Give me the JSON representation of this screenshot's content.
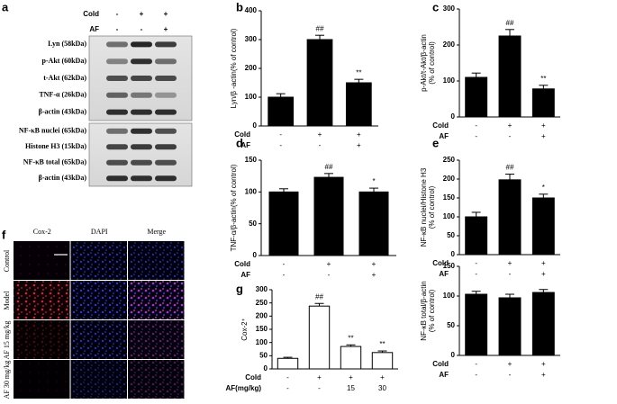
{
  "panel_labels": [
    "a",
    "b",
    "c",
    "d",
    "e",
    "f",
    "g"
  ],
  "blot": {
    "conditions": [
      {
        "name": "Cold",
        "signs": [
          "-",
          "+",
          "+"
        ]
      },
      {
        "name": "AF",
        "signs": [
          "-",
          "-",
          "+"
        ]
      }
    ],
    "groups": [
      [
        "Lyn (58kDa)",
        "p-Akt (60kDa)",
        "t-Akt (62kDa)",
        "TNF-α (26kDa)",
        "β-actin (43kDa)"
      ],
      [
        "NF-κB nuclei (65kDa)",
        "Histone H3 (15kDa)",
        "NF-κB total (65kDa)",
        "β-actin (43kDa)"
      ]
    ]
  },
  "micrographs": {
    "columns": [
      "Cox-2",
      "DAPI",
      "Merge"
    ],
    "rows": [
      "Control",
      "Model",
      "AF 15 mg/kg",
      "AF 30 mg/kg"
    ]
  },
  "chart_data": [
    {
      "type": "bar",
      "ylabel": [
        "Lyn/β -actin(% of control)"
      ],
      "color": "#000000",
      "conditions": [
        {
          "name": "Cold",
          "labels": [
            "-",
            "+",
            "+"
          ]
        },
        {
          "name": "AF",
          "labels": [
            "-",
            "-",
            "+"
          ]
        }
      ],
      "values": [
        100,
        300,
        150
      ],
      "errors": [
        12,
        15,
        12
      ],
      "annotations": [
        null,
        "##",
        "**"
      ],
      "ylim": [
        0,
        400
      ],
      "yticks": [
        0,
        100,
        200,
        300,
        400
      ]
    },
    {
      "type": "bar",
      "ylabel": [
        "p-Akt/t-Akt/β-actin",
        "(% of control)"
      ],
      "color": "#000000",
      "conditions": [
        {
          "name": "Cold",
          "labels": [
            "-",
            "+",
            "+"
          ]
        },
        {
          "name": "AF",
          "labels": [
            "-",
            "-",
            "+"
          ]
        }
      ],
      "values": [
        110,
        225,
        78
      ],
      "errors": [
        12,
        18,
        10
      ],
      "annotations": [
        null,
        "##",
        "**"
      ],
      "ylim": [
        0,
        300
      ],
      "yticks": [
        0,
        100,
        200,
        300
      ]
    },
    {
      "type": "bar",
      "ylabel": [
        "TNF-α/β-actin(% of control)"
      ],
      "color": "#000000",
      "conditions": [
        {
          "name": "Cold",
          "labels": [
            "-",
            "+",
            "+"
          ]
        },
        {
          "name": "AF",
          "labels": [
            "-",
            "-",
            "+"
          ]
        }
      ],
      "values": [
        100,
        123,
        100
      ],
      "errors": [
        5,
        6,
        6
      ],
      "annotations": [
        null,
        "##",
        "*"
      ],
      "ylim": [
        0,
        150
      ],
      "yticks": [
        0,
        50,
        100,
        150
      ]
    },
    {
      "type": "bar",
      "ylabel": [
        "NF-κB nuclei/Histone H3",
        "(% of control)"
      ],
      "color": "#000000",
      "conditions": [
        {
          "name": "Cold",
          "labels": [
            "-",
            "+",
            "+"
          ]
        },
        {
          "name": "AF",
          "labels": [
            "-",
            "-",
            "+"
          ]
        }
      ],
      "values": [
        100,
        198,
        150
      ],
      "errors": [
        12,
        15,
        10
      ],
      "annotations": [
        null,
        "##",
        "*"
      ],
      "ylim": [
        0,
        250
      ],
      "yticks": [
        0,
        50,
        100,
        150,
        200,
        250
      ]
    },
    {
      "type": "bar",
      "ylabel": [
        "NF-κB total/β-actin",
        "(% of control)"
      ],
      "color": "#000000",
      "conditions": [
        {
          "name": "Cold",
          "labels": [
            "-",
            "+",
            "+"
          ]
        },
        {
          "name": "AF",
          "labels": [
            "-",
            "-",
            "+"
          ]
        }
      ],
      "values": [
        103,
        97,
        106
      ],
      "errors": [
        5,
        6,
        5
      ],
      "annotations": [
        null,
        null,
        null
      ],
      "ylim": [
        0,
        150
      ],
      "yticks": [
        0,
        50,
        100,
        150
      ]
    },
    {
      "type": "bar",
      "ylabel": [
        "Cox-2⁺"
      ],
      "color": "#ffffff",
      "conditions": [
        {
          "name": "Cold",
          "labels": [
            "-",
            "+",
            "+",
            "+"
          ]
        },
        {
          "name": "AF(mg/kg)",
          "labels": [
            "-",
            "-",
            "15",
            "30"
          ]
        }
      ],
      "values": [
        40,
        238,
        85,
        62
      ],
      "errors": [
        4,
        10,
        6,
        6
      ],
      "annotations": [
        null,
        "##",
        "**",
        "**"
      ],
      "ylim": [
        0,
        300
      ],
      "yticks": [
        0,
        50,
        100,
        150,
        200,
        250,
        300
      ]
    }
  ]
}
